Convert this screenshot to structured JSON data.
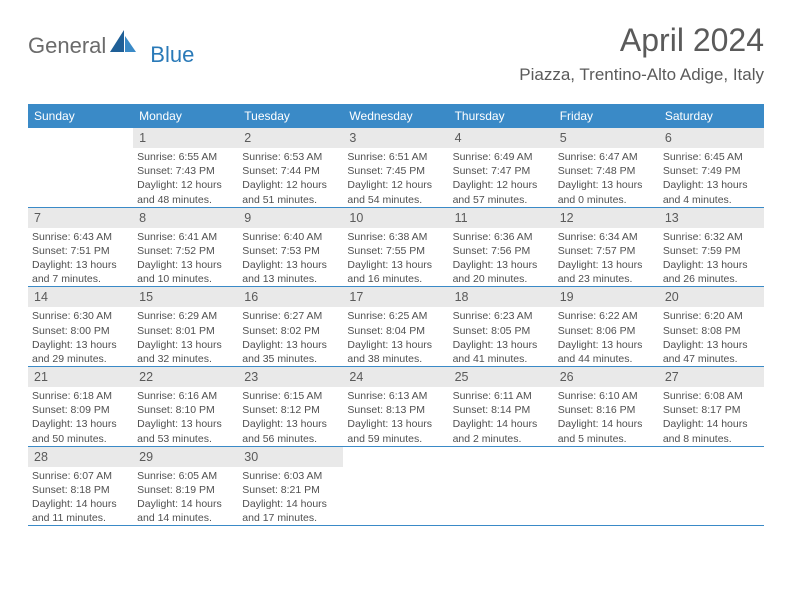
{
  "logo": {
    "general": "General",
    "blue": "Blue"
  },
  "header": {
    "month": "April 2024",
    "location": "Piazza, Trentino-Alto Adige, Italy"
  },
  "colors": {
    "header_bg": "#3a8ac7",
    "header_text": "#ffffff",
    "daynum_bg": "#e9e9e9",
    "text": "#505050",
    "rule": "#3a8ac7",
    "page_bg": "#ffffff"
  },
  "weekdays": [
    "Sunday",
    "Monday",
    "Tuesday",
    "Wednesday",
    "Thursday",
    "Friday",
    "Saturday"
  ],
  "weeks": [
    [
      {
        "num": "",
        "sunrise": "",
        "sunset": "",
        "daylight": ""
      },
      {
        "num": "1",
        "sunrise": "Sunrise: 6:55 AM",
        "sunset": "Sunset: 7:43 PM",
        "daylight": "Daylight: 12 hours and 48 minutes."
      },
      {
        "num": "2",
        "sunrise": "Sunrise: 6:53 AM",
        "sunset": "Sunset: 7:44 PM",
        "daylight": "Daylight: 12 hours and 51 minutes."
      },
      {
        "num": "3",
        "sunrise": "Sunrise: 6:51 AM",
        "sunset": "Sunset: 7:45 PM",
        "daylight": "Daylight: 12 hours and 54 minutes."
      },
      {
        "num": "4",
        "sunrise": "Sunrise: 6:49 AM",
        "sunset": "Sunset: 7:47 PM",
        "daylight": "Daylight: 12 hours and 57 minutes."
      },
      {
        "num": "5",
        "sunrise": "Sunrise: 6:47 AM",
        "sunset": "Sunset: 7:48 PM",
        "daylight": "Daylight: 13 hours and 0 minutes."
      },
      {
        "num": "6",
        "sunrise": "Sunrise: 6:45 AM",
        "sunset": "Sunset: 7:49 PM",
        "daylight": "Daylight: 13 hours and 4 minutes."
      }
    ],
    [
      {
        "num": "7",
        "sunrise": "Sunrise: 6:43 AM",
        "sunset": "Sunset: 7:51 PM",
        "daylight": "Daylight: 13 hours and 7 minutes."
      },
      {
        "num": "8",
        "sunrise": "Sunrise: 6:41 AM",
        "sunset": "Sunset: 7:52 PM",
        "daylight": "Daylight: 13 hours and 10 minutes."
      },
      {
        "num": "9",
        "sunrise": "Sunrise: 6:40 AM",
        "sunset": "Sunset: 7:53 PM",
        "daylight": "Daylight: 13 hours and 13 minutes."
      },
      {
        "num": "10",
        "sunrise": "Sunrise: 6:38 AM",
        "sunset": "Sunset: 7:55 PM",
        "daylight": "Daylight: 13 hours and 16 minutes."
      },
      {
        "num": "11",
        "sunrise": "Sunrise: 6:36 AM",
        "sunset": "Sunset: 7:56 PM",
        "daylight": "Daylight: 13 hours and 20 minutes."
      },
      {
        "num": "12",
        "sunrise": "Sunrise: 6:34 AM",
        "sunset": "Sunset: 7:57 PM",
        "daylight": "Daylight: 13 hours and 23 minutes."
      },
      {
        "num": "13",
        "sunrise": "Sunrise: 6:32 AM",
        "sunset": "Sunset: 7:59 PM",
        "daylight": "Daylight: 13 hours and 26 minutes."
      }
    ],
    [
      {
        "num": "14",
        "sunrise": "Sunrise: 6:30 AM",
        "sunset": "Sunset: 8:00 PM",
        "daylight": "Daylight: 13 hours and 29 minutes."
      },
      {
        "num": "15",
        "sunrise": "Sunrise: 6:29 AM",
        "sunset": "Sunset: 8:01 PM",
        "daylight": "Daylight: 13 hours and 32 minutes."
      },
      {
        "num": "16",
        "sunrise": "Sunrise: 6:27 AM",
        "sunset": "Sunset: 8:02 PM",
        "daylight": "Daylight: 13 hours and 35 minutes."
      },
      {
        "num": "17",
        "sunrise": "Sunrise: 6:25 AM",
        "sunset": "Sunset: 8:04 PM",
        "daylight": "Daylight: 13 hours and 38 minutes."
      },
      {
        "num": "18",
        "sunrise": "Sunrise: 6:23 AM",
        "sunset": "Sunset: 8:05 PM",
        "daylight": "Daylight: 13 hours and 41 minutes."
      },
      {
        "num": "19",
        "sunrise": "Sunrise: 6:22 AM",
        "sunset": "Sunset: 8:06 PM",
        "daylight": "Daylight: 13 hours and 44 minutes."
      },
      {
        "num": "20",
        "sunrise": "Sunrise: 6:20 AM",
        "sunset": "Sunset: 8:08 PM",
        "daylight": "Daylight: 13 hours and 47 minutes."
      }
    ],
    [
      {
        "num": "21",
        "sunrise": "Sunrise: 6:18 AM",
        "sunset": "Sunset: 8:09 PM",
        "daylight": "Daylight: 13 hours and 50 minutes."
      },
      {
        "num": "22",
        "sunrise": "Sunrise: 6:16 AM",
        "sunset": "Sunset: 8:10 PM",
        "daylight": "Daylight: 13 hours and 53 minutes."
      },
      {
        "num": "23",
        "sunrise": "Sunrise: 6:15 AM",
        "sunset": "Sunset: 8:12 PM",
        "daylight": "Daylight: 13 hours and 56 minutes."
      },
      {
        "num": "24",
        "sunrise": "Sunrise: 6:13 AM",
        "sunset": "Sunset: 8:13 PM",
        "daylight": "Daylight: 13 hours and 59 minutes."
      },
      {
        "num": "25",
        "sunrise": "Sunrise: 6:11 AM",
        "sunset": "Sunset: 8:14 PM",
        "daylight": "Daylight: 14 hours and 2 minutes."
      },
      {
        "num": "26",
        "sunrise": "Sunrise: 6:10 AM",
        "sunset": "Sunset: 8:16 PM",
        "daylight": "Daylight: 14 hours and 5 minutes."
      },
      {
        "num": "27",
        "sunrise": "Sunrise: 6:08 AM",
        "sunset": "Sunset: 8:17 PM",
        "daylight": "Daylight: 14 hours and 8 minutes."
      }
    ],
    [
      {
        "num": "28",
        "sunrise": "Sunrise: 6:07 AM",
        "sunset": "Sunset: 8:18 PM",
        "daylight": "Daylight: 14 hours and 11 minutes."
      },
      {
        "num": "29",
        "sunrise": "Sunrise: 6:05 AM",
        "sunset": "Sunset: 8:19 PM",
        "daylight": "Daylight: 14 hours and 14 minutes."
      },
      {
        "num": "30",
        "sunrise": "Sunrise: 6:03 AM",
        "sunset": "Sunset: 8:21 PM",
        "daylight": "Daylight: 14 hours and 17 minutes."
      },
      {
        "num": "",
        "sunrise": "",
        "sunset": "",
        "daylight": ""
      },
      {
        "num": "",
        "sunrise": "",
        "sunset": "",
        "daylight": ""
      },
      {
        "num": "",
        "sunrise": "",
        "sunset": "",
        "daylight": ""
      },
      {
        "num": "",
        "sunrise": "",
        "sunset": "",
        "daylight": ""
      }
    ]
  ]
}
